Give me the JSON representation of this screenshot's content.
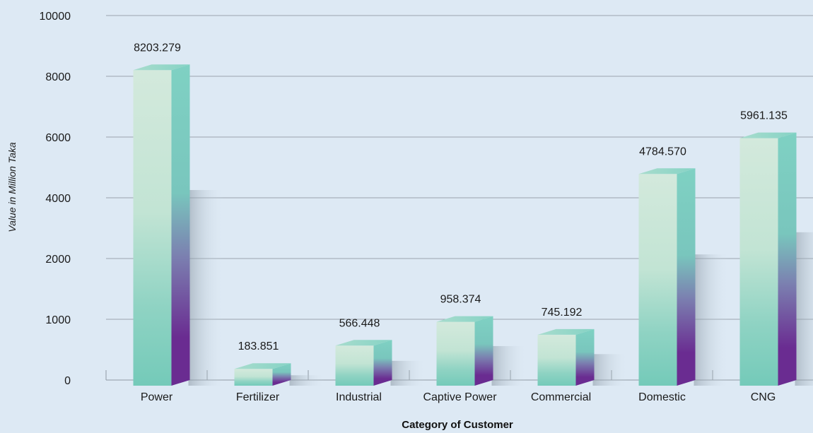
{
  "chart_data": {
    "type": "bar",
    "title": "",
    "xlabel": "Category of Customer",
    "ylabel": "Value in Million Taka",
    "y_ticks": [
      "0",
      "1000",
      "2000",
      "4000",
      "6000",
      "8000",
      "10000"
    ],
    "categories": [
      "Power",
      "Fertilizer",
      "Industrial",
      "Captive Power",
      "Commercial",
      "Domestic",
      "CNG"
    ],
    "values": [
      8203.279,
      183.851,
      566.448,
      958.374,
      745.192,
      4784.57,
      5961.135
    ],
    "value_labels": [
      "8203.279",
      "183.851",
      "566.448",
      "958.374",
      "745.192",
      "4784.570",
      "5961.135"
    ],
    "grid": true,
    "legend": "none",
    "colors": {
      "bar_front_light": "#d2e9dc",
      "bar_front_dark": "#77cbbe",
      "bar_side_teal": "#7fd1c3",
      "bar_side_purple": "#6a2c91",
      "background": "#dde9f4"
    }
  }
}
